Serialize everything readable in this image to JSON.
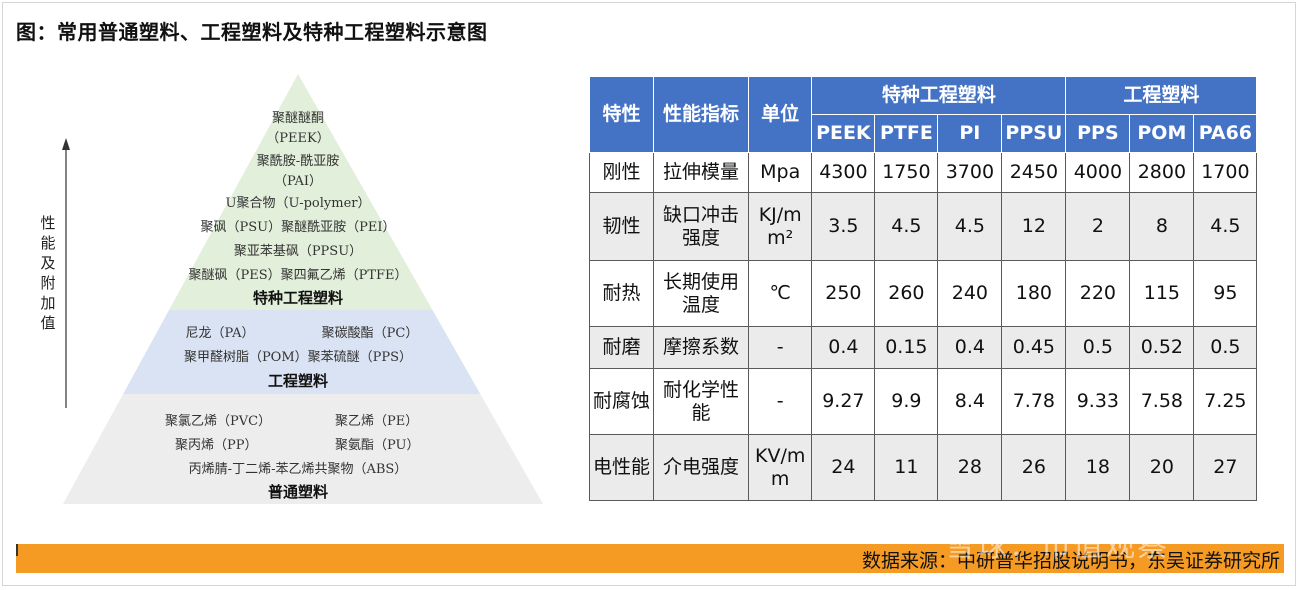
{
  "title": "图：常用普通塑料、工程塑料及特种工程塑料示意图",
  "pyramid": {
    "axis_label": "性能及附加值",
    "special_tier": {
      "lines": [
        "聚醚醚酮",
        "（PEEK）",
        "聚酰胺-酰亚胺",
        "（PAI）",
        "U聚合物（U-polymer）",
        "聚砜（PSU）聚醚酰亚胺（PEI）",
        "聚亚苯基砜（PPSU）",
        "聚醚砜（PES）聚四氟乙烯（PTFE）"
      ],
      "label": "特种工程塑料",
      "color": "#e2efda"
    },
    "engineering_tier": {
      "lines": [
        "尼龙（PA）",
        "聚碳酸酯（PC）",
        "聚甲醛树脂（POM）聚苯硫醚（PPS）"
      ],
      "label": "工程塑料",
      "color": "#dae3f3"
    },
    "general_tier": {
      "lines": [
        "聚氯乙烯（PVC）",
        "聚乙烯（PE）",
        "聚丙烯（PP）",
        "聚氨酯（PU）",
        "丙烯腈-丁二烯-苯乙烯共聚物（ABS）"
      ],
      "label": "普通塑料",
      "color": "#ededed"
    }
  },
  "table": {
    "headers": {
      "property": "特性",
      "indicator": "性能指标",
      "unit": "单位",
      "group_special": "特种工程塑料",
      "group_engineering": "工程塑料",
      "materials": [
        "PEEK",
        "PTFE",
        "PI",
        "PPSU",
        "PPS",
        "POM",
        "PA66"
      ]
    },
    "rows": [
      {
        "property": "刚性",
        "indicator": "拉伸模量",
        "unit": "Mpa",
        "values": [
          "4300",
          "1750",
          "3700",
          "2450",
          "4000",
          "2800",
          "1700"
        ]
      },
      {
        "property": "韧性",
        "indicator": "缺口冲击强度",
        "unit": "KJ/m m²",
        "values": [
          "3.5",
          "4.5",
          "4.5",
          "12",
          "2",
          "8",
          "4.5"
        ]
      },
      {
        "property": "耐热",
        "indicator": "长期使用温度",
        "unit": "℃",
        "values": [
          "250",
          "260",
          "240",
          "180",
          "220",
          "115",
          "95"
        ]
      },
      {
        "property": "耐磨",
        "indicator": "摩擦系数",
        "unit": "-",
        "values": [
          "0.4",
          "0.15",
          "0.4",
          "0.45",
          "0.5",
          "0.52",
          "0.5"
        ]
      },
      {
        "property": "耐腐蚀",
        "indicator": "耐化学性能",
        "unit": "-",
        "values": [
          "9.27",
          "9.9",
          "8.4",
          "7.78",
          "9.33",
          "7.58",
          "7.25"
        ]
      },
      {
        "property": "电性能",
        "indicator": "介电强度",
        "unit": "KV/m m",
        "values": [
          "24",
          "11",
          "28",
          "26",
          "18",
          "20",
          "27"
        ]
      }
    ],
    "header_color": "#4472c4",
    "stripe_color": "#ebebeb"
  },
  "footer": {
    "source": "数据来源：中研普华招股说明书，东吴证券研究所",
    "watermark": "雪球：市值观察",
    "bar_color": "#f59a23"
  }
}
